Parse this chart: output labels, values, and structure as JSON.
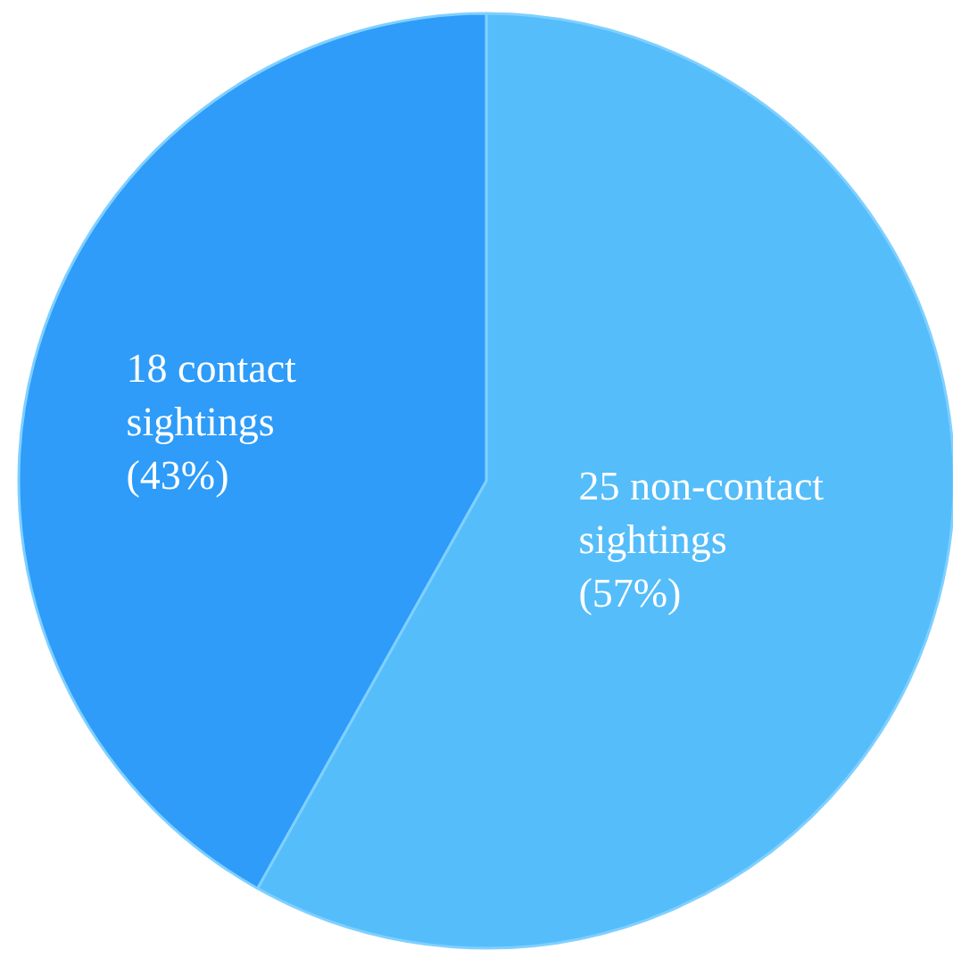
{
  "chart_data": {
    "type": "pie",
    "categories": [
      "25 non-contact sightings (57%)",
      "18 contact sightings (43%)"
    ],
    "values": [
      25,
      18
    ],
    "colors": [
      "#55bdfa",
      "#2e9cf8"
    ]
  }
}
